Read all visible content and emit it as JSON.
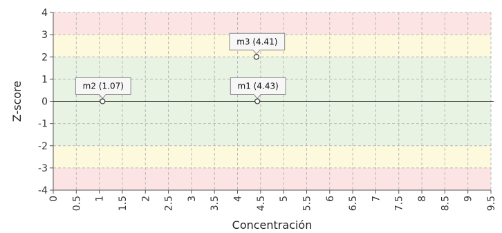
{
  "chart_data": {
    "type": "scatter",
    "xlabel": "Concentración",
    "ylabel": "Z-score",
    "xlim": [
      0,
      9.5
    ],
    "ylim": [
      -4,
      4
    ],
    "x_ticks": [
      "0",
      "0.5",
      "1",
      "1.5",
      "2",
      "2.5",
      "3",
      "3.5",
      "4",
      "4.5",
      "5",
      "5.5",
      "6",
      "6.5",
      "7",
      "7.5",
      "8",
      "8.5",
      "9",
      "9.5"
    ],
    "y_ticks": [
      "4",
      "3",
      "2",
      "1",
      "0",
      "-1",
      "-2",
      "-3",
      "-4"
    ],
    "grid": true,
    "bands": [
      {
        "from": 3,
        "to": 4,
        "color": "#fde4e4"
      },
      {
        "from": 2,
        "to": 3,
        "color": "#fdf9dc"
      },
      {
        "from": -2,
        "to": 2,
        "color": "#e8f3e3"
      },
      {
        "from": -3,
        "to": -2,
        "color": "#fdf9dc"
      },
      {
        "from": -4,
        "to": -3,
        "color": "#fde4e4"
      }
    ],
    "points": [
      {
        "label": "m2 (1.07)",
        "x": 1.07,
        "y": 0
      },
      {
        "label": "m1 (4.43)",
        "x": 4.43,
        "y": 0
      },
      {
        "label": "m3 (4.41)",
        "x": 4.41,
        "y": 2
      }
    ]
  }
}
